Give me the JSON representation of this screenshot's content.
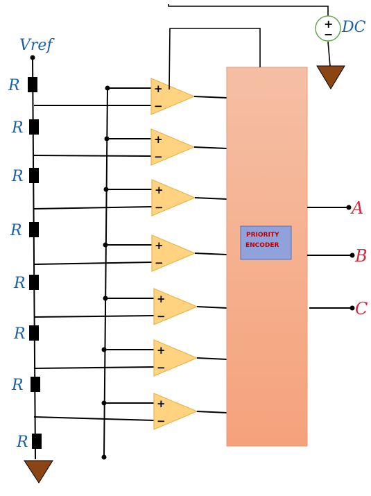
{
  "colors": {
    "resistor": "#000000",
    "opamp_fill": "#ffd37f",
    "opamp_stroke": "#e8b44a",
    "encoder_top": "#f5bfa4",
    "encoder_bottom": "#f5a27b",
    "encoder_label_bg": "#8fa2dc",
    "encoder_label_text": "#c00000",
    "ground": "#8b4513",
    "source_stroke": "#5fa84a",
    "blue_ink": "#1a5fa8",
    "red_ink": "#d9283c"
  },
  "labels": {
    "vref": "Vref",
    "dc": "DC",
    "source_plus": "+",
    "source_minus": "−"
  },
  "resistors": [
    "R",
    "R",
    "R",
    "R",
    "R",
    "R",
    "R",
    "R"
  ],
  "comparators": [
    {
      "plus": "+",
      "minus": "−"
    },
    {
      "plus": "+",
      "minus": "−"
    },
    {
      "plus": "+",
      "minus": "−"
    },
    {
      "plus": "+",
      "minus": "−"
    },
    {
      "plus": "+",
      "minus": "−"
    },
    {
      "plus": "+",
      "minus": "−"
    },
    {
      "plus": "+",
      "minus": "−"
    }
  ],
  "encoder": {
    "line1": "PRIORITY",
    "line2": "ENCODER"
  },
  "outputs": [
    "A",
    "B",
    "C"
  ]
}
